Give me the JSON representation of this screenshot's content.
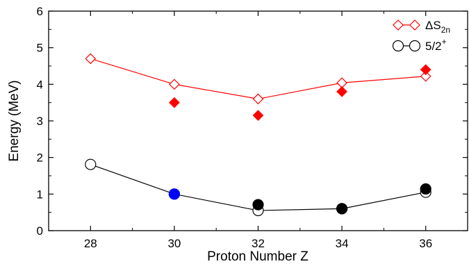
{
  "chart_data": {
    "type": "scatter",
    "xlabel": "Proton Number Z",
    "ylabel": "Energy (MeV)",
    "xlim": [
      27,
      37
    ],
    "ylim": [
      0,
      6
    ],
    "xticks": [
      "28",
      "30",
      "32",
      "34",
      "36"
    ],
    "yticks": [
      "0",
      "1",
      "2",
      "3",
      "4",
      "5",
      "6"
    ],
    "grid": false,
    "legend_position": "top-right",
    "colors": {
      "red": "#ff0000",
      "black": "#000000",
      "blue": "#0000ff"
    },
    "series": [
      {
        "name": "ΔS2n",
        "name_main": "ΔS",
        "name_sub": "2n",
        "marker": "open-diamond",
        "line": true,
        "color": "#ff0000",
        "x": [
          28,
          30,
          32,
          34,
          36
        ],
        "y": [
          4.7,
          4.0,
          3.6,
          4.04,
          4.22
        ]
      },
      {
        "name": "5/2+",
        "name_main": "5/2",
        "name_sup": "+",
        "marker": "open-circle",
        "line": true,
        "color": "#000000",
        "x": [
          28,
          30,
          32,
          34,
          36
        ],
        "y": [
          1.81,
          1.0,
          0.55,
          0.6,
          1.05
        ]
      },
      {
        "marker": "filled-diamond",
        "line": false,
        "color": "#ff0000",
        "x": [
          30,
          32,
          34,
          36
        ],
        "y": [
          3.5,
          3.15,
          3.8,
          4.4
        ]
      },
      {
        "marker": "filled-circle",
        "line": false,
        "color": "#000000",
        "x": [
          32,
          34,
          36
        ],
        "y": [
          0.71,
          0.6,
          1.14
        ]
      },
      {
        "marker": "filled-circle",
        "line": false,
        "color": "#0000ff",
        "x": [
          30
        ],
        "y": [
          1.0
        ]
      }
    ]
  }
}
